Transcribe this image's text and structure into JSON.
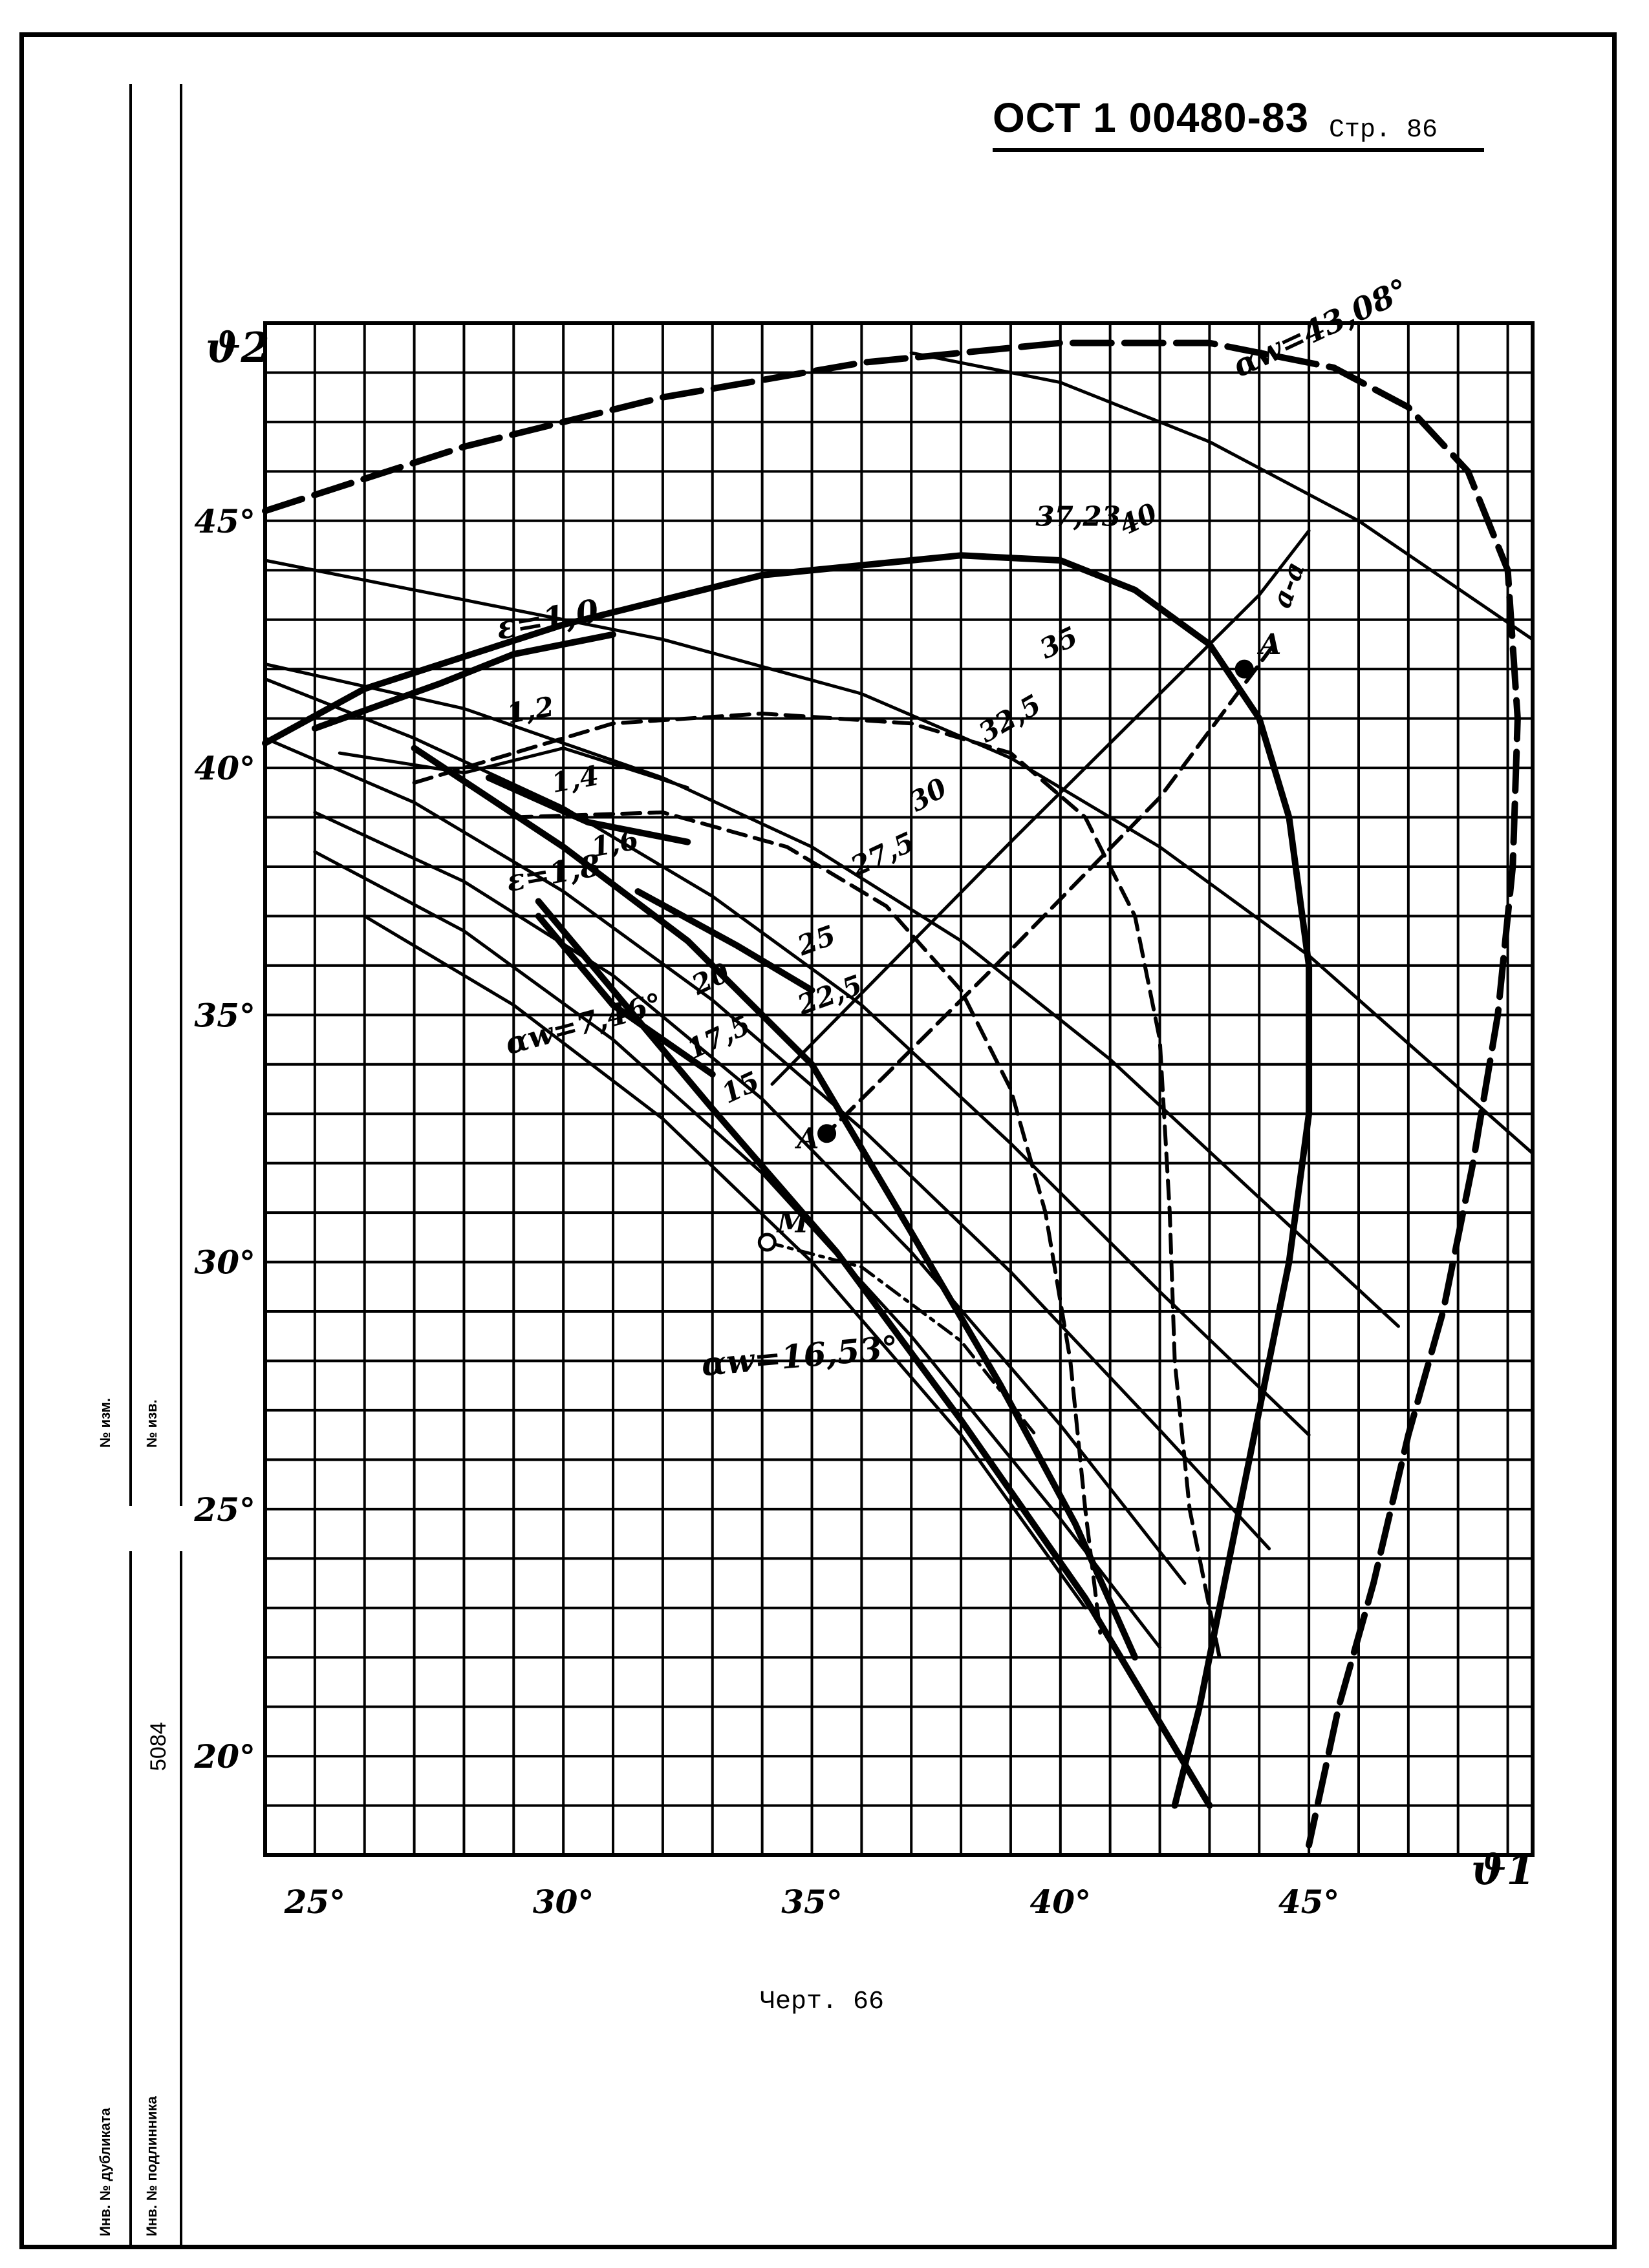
{
  "header": {
    "standard": "ОСТ 1 00480-83",
    "page": "Стр. 86"
  },
  "caption": "Черт. 66",
  "side_stamp": {
    "inv_change": "№ изм.",
    "inv_notice": "№ изв.",
    "number": "5084",
    "inv_duplicate": "Инв. № дубликата",
    "inv_original": "Инв. № подлинника"
  },
  "chart_data": {
    "type": "line",
    "xlabel": "ϑ1",
    "ylabel": "ϑ2",
    "xlim": [
      24,
      49.5
    ],
    "ylim": [
      18,
      49
    ],
    "x_tick_labels": [
      "25°",
      "30°",
      "35°",
      "40°",
      "45°"
    ],
    "x_ticks": [
      25,
      30,
      35,
      40,
      45
    ],
    "y_tick_labels": [
      "20°",
      "25°",
      "30°",
      "35°",
      "40°",
      "45°"
    ],
    "y_ticks": [
      20,
      25,
      30,
      35,
      40,
      45
    ],
    "grid": true,
    "grid_step": 1,
    "series": [
      {
        "name": "αw=43,08°",
        "style": "thick-dash",
        "points": [
          [
            24,
            45.2
          ],
          [
            28,
            46.5
          ],
          [
            32,
            47.5
          ],
          [
            36,
            48.2
          ],
          [
            40,
            48.6
          ],
          [
            43,
            48.6
          ],
          [
            45.5,
            48.1
          ],
          [
            47,
            47.3
          ],
          [
            48.2,
            46
          ],
          [
            49,
            44
          ],
          [
            49.2,
            41
          ],
          [
            49.1,
            38
          ],
          [
            48.8,
            35
          ],
          [
            48.3,
            32
          ],
          [
            47.7,
            29
          ],
          [
            47,
            26.5
          ],
          [
            46.3,
            23.5
          ],
          [
            45.6,
            21
          ],
          [
            45,
            18.2
          ]
        ]
      },
      {
        "name": "40",
        "style": "thin",
        "points": [
          [
            37,
            48.4
          ],
          [
            40,
            47.8
          ],
          [
            43,
            46.6
          ],
          [
            46,
            45
          ],
          [
            49.5,
            42.6
          ]
        ]
      },
      {
        "name": "37,23",
        "style": "thick",
        "points": [
          [
            24,
            40.5
          ],
          [
            26,
            41.6
          ],
          [
            30,
            42.9
          ],
          [
            34,
            43.9
          ],
          [
            38,
            44.3
          ],
          [
            40,
            44.2
          ],
          [
            41.5,
            43.6
          ],
          [
            43,
            42.5
          ],
          [
            44,
            41
          ],
          [
            44.6,
            39
          ],
          [
            45,
            36
          ],
          [
            45,
            33
          ],
          [
            44.6,
            30
          ],
          [
            44,
            27
          ],
          [
            43.4,
            24
          ],
          [
            42.8,
            21
          ],
          [
            42.3,
            19
          ]
        ]
      },
      {
        "name": "35",
        "style": "thin",
        "points": [
          [
            24,
            44.2
          ],
          [
            28,
            43.4
          ],
          [
            32,
            42.6
          ],
          [
            36,
            41.5
          ],
          [
            39,
            40.2
          ],
          [
            42,
            38.4
          ],
          [
            45,
            36.2
          ],
          [
            49.5,
            32.2
          ]
        ]
      },
      {
        "name": "32,5",
        "style": "dash",
        "points": [
          [
            27,
            39.7
          ],
          [
            31,
            40.9
          ],
          [
            34,
            41.1
          ],
          [
            37,
            40.9
          ],
          [
            39,
            40.3
          ],
          [
            40.5,
            39
          ],
          [
            41.5,
            37
          ],
          [
            42,
            34.5
          ],
          [
            42.2,
            31
          ],
          [
            42.3,
            28
          ],
          [
            42.6,
            25
          ],
          [
            43.2,
            22
          ]
        ]
      },
      {
        "name": "30",
        "style": "thin",
        "points": [
          [
            24,
            42.1
          ],
          [
            28,
            41.2
          ],
          [
            32,
            39.8
          ],
          [
            35,
            38.4
          ],
          [
            38,
            36.5
          ],
          [
            41,
            34.1
          ],
          [
            44,
            31.3
          ],
          [
            46.8,
            28.7
          ]
        ]
      },
      {
        "name": "27,5",
        "style": "dash",
        "points": [
          [
            29,
            39
          ],
          [
            32,
            39.1
          ],
          [
            34.5,
            38.4
          ],
          [
            36.5,
            37.2
          ],
          [
            38,
            35.5
          ],
          [
            39,
            33.5
          ],
          [
            39.7,
            31
          ],
          [
            40.2,
            28
          ],
          [
            40.5,
            25
          ],
          [
            40.8,
            22.5
          ]
        ]
      },
      {
        "name": "25",
        "style": "thin",
        "points": [
          [
            24,
            41.8
          ],
          [
            27,
            40.6
          ],
          [
            30,
            39.2
          ],
          [
            33,
            37.4
          ],
          [
            36,
            35.2
          ],
          [
            39,
            32.4
          ],
          [
            42,
            29.4
          ],
          [
            45,
            26.5
          ]
        ]
      },
      {
        "name": "22,5",
        "style": "thin",
        "points": [
          [
            24,
            40.6
          ],
          [
            27,
            39.3
          ],
          [
            30,
            37.5
          ],
          [
            33,
            35.3
          ],
          [
            36,
            32.7
          ],
          [
            39,
            29.8
          ],
          [
            42,
            26.6
          ],
          [
            44.2,
            24.2
          ]
        ]
      },
      {
        "name": "20",
        "style": "thin",
        "points": [
          [
            25,
            39.1
          ],
          [
            28,
            37.7
          ],
          [
            31,
            35.8
          ],
          [
            34,
            33.3
          ],
          [
            37,
            30.2
          ],
          [
            40,
            26.7
          ],
          [
            42.5,
            23.5
          ]
        ]
      },
      {
        "name": "17,5",
        "style": "thin",
        "points": [
          [
            25,
            38.3
          ],
          [
            28,
            36.7
          ],
          [
            31,
            34.5
          ],
          [
            34,
            31.8
          ],
          [
            37,
            28.5
          ],
          [
            40,
            24.8
          ],
          [
            42,
            22.2
          ]
        ]
      },
      {
        "name": "15",
        "style": "thin",
        "points": [
          [
            26,
            37
          ],
          [
            29,
            35.2
          ],
          [
            32,
            32.9
          ],
          [
            35,
            30
          ],
          [
            38,
            26.5
          ],
          [
            40.5,
            23
          ]
        ]
      },
      {
        "name": "αw=16,53°",
        "style": "thick",
        "points": [
          [
            27,
            40.4
          ],
          [
            30,
            38.4
          ],
          [
            32.5,
            36.5
          ],
          [
            35,
            34
          ],
          [
            37,
            30.6
          ],
          [
            38.8,
            27.5
          ],
          [
            40.3,
            24.7
          ],
          [
            41.5,
            22
          ]
        ]
      },
      {
        "name": "αw=7,46°",
        "style": "thick",
        "points": [
          [
            29.5,
            37.3
          ],
          [
            31,
            35.5
          ],
          [
            33,
            33.1
          ],
          [
            35.5,
            30.2
          ],
          [
            38,
            26.8
          ],
          [
            40.5,
            23.2
          ],
          [
            43,
            19
          ]
        ]
      },
      {
        "name": "ε=1,2",
        "style": "thin",
        "points": [
          [
            25.5,
            40.3
          ],
          [
            28,
            39.9
          ],
          [
            30,
            40.4
          ],
          [
            32.5,
            39.6
          ]
        ]
      },
      {
        "name": "ε=1,4",
        "style": "thick",
        "points": [
          [
            28.5,
            39.8
          ],
          [
            30.5,
            38.9
          ],
          [
            32.5,
            38.5
          ]
        ]
      },
      {
        "name": "ε=1,6",
        "style": "thick",
        "points": [
          [
            31.5,
            37.5
          ],
          [
            33.5,
            36.4
          ],
          [
            35,
            35.5
          ]
        ]
      },
      {
        "name": "ε=1,8",
        "style": "thick",
        "points": [
          [
            29.5,
            37
          ],
          [
            31,
            35.2
          ],
          [
            33,
            33.8
          ]
        ]
      },
      {
        "name": "ε=1,0",
        "style": "thick",
        "points": [
          [
            25,
            40.8
          ],
          [
            27.5,
            41.7
          ],
          [
            29,
            42.3
          ],
          [
            31,
            42.7
          ]
        ]
      },
      {
        "name": "a-a",
        "style": "thin",
        "points": [
          [
            34.2,
            33.6
          ],
          [
            39,
            38.5
          ],
          [
            44,
            43.5
          ],
          [
            45,
            44.8
          ]
        ]
      },
      {
        "name": "A-A",
        "style": "dash",
        "points": [
          [
            35.2,
            32.5
          ],
          [
            38.5,
            35.8
          ],
          [
            42,
            39.4
          ],
          [
            44.3,
            42.5
          ]
        ]
      },
      {
        "name": "M",
        "style": "dashdot",
        "points": [
          [
            34.1,
            30.4
          ],
          [
            36,
            29.9
          ],
          [
            38,
            28.4
          ],
          [
            39.5,
            26.5
          ]
        ]
      }
    ],
    "points": [
      {
        "label": "A",
        "x": 43.7,
        "y": 42
      },
      {
        "label": "A",
        "x": 35.3,
        "y": 32.6
      },
      {
        "label": "M",
        "x": 34.1,
        "y": 30.4
      }
    ],
    "annotations": [
      "αw=43,08°",
      "40",
      "37,23",
      "35",
      "32,5",
      "30",
      "27,5",
      "25",
      "22,5",
      "20",
      "17,5",
      "15",
      "ε=1,0",
      "1,2",
      "1,4",
      "1,6",
      "ε=1,8",
      "αw=7,46°",
      "αw=16,53°",
      "a-a",
      "A",
      "A",
      "M"
    ]
  }
}
